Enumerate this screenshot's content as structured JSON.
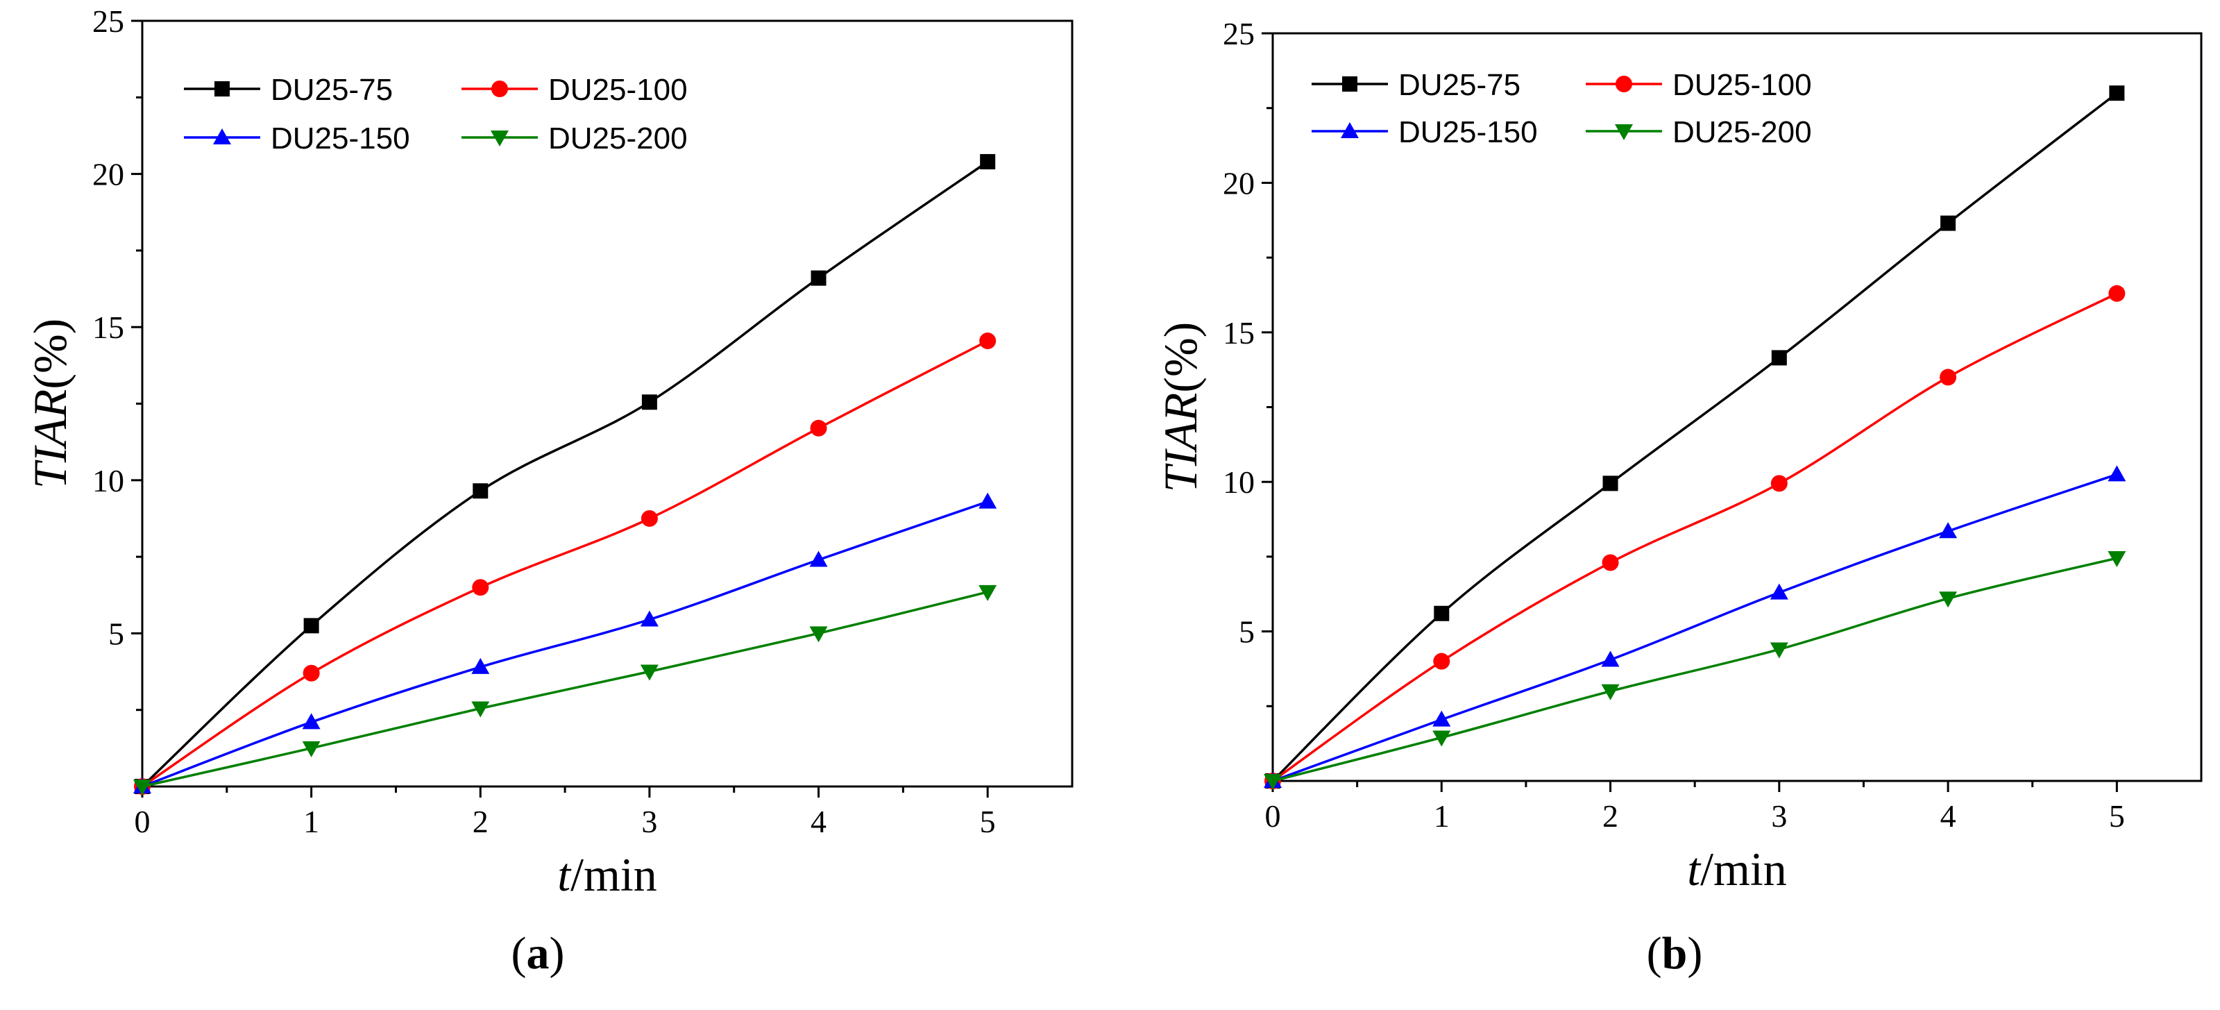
{
  "figure": {
    "panels": [
      {
        "label_open": "(",
        "label_letter": "a",
        "label_close": ")"
      },
      {
        "label_open": "(",
        "label_letter": "b",
        "label_close": ")"
      }
    ]
  },
  "chart_data": [
    {
      "type": "line",
      "panel": "a",
      "title": "",
      "xlabel_italic": "t",
      "xlabel_rest": "/min",
      "ylabel_italic": "TIAR",
      "ylabel_rest": "(%)",
      "xlim": [
        0,
        5.5
      ],
      "ylim": [
        0,
        25
      ],
      "xticks": [
        0,
        1,
        2,
        3,
        4,
        5
      ],
      "xtick_labels": [
        "0",
        "1",
        "2",
        "3",
        "4",
        "5"
      ],
      "yticks": [
        5,
        10,
        15,
        20,
        25
      ],
      "ytick_labels": [
        "5",
        "10",
        "15",
        "20",
        "25"
      ],
      "x": [
        0,
        1,
        2,
        3,
        4,
        5
      ],
      "series": [
        {
          "name": "DU25-75",
          "color": "#000000",
          "marker": "square",
          "values": [
            0,
            5.25,
            9.65,
            12.55,
            16.6,
            20.4
          ]
        },
        {
          "name": "DU25-100",
          "color": "#ff0000",
          "marker": "circle",
          "values": [
            0,
            3.7,
            6.5,
            8.75,
            11.7,
            14.55
          ]
        },
        {
          "name": "DU25-150",
          "color": "#0000ff",
          "marker": "triangle-up",
          "values": [
            0,
            2.1,
            3.9,
            5.45,
            7.4,
            9.3
          ]
        },
        {
          "name": "DU25-200",
          "color": "#008000",
          "marker": "triangle-down",
          "values": [
            0,
            1.25,
            2.55,
            3.75,
            5.0,
            6.35
          ]
        }
      ],
      "legend": "top-left, two columns"
    },
    {
      "type": "line",
      "panel": "b",
      "title": "",
      "xlabel_italic": "t",
      "xlabel_rest": "/min",
      "ylabel_italic": "TIAR",
      "ylabel_rest": "(%)",
      "xlim": [
        0,
        5.5
      ],
      "ylim": [
        0,
        25
      ],
      "xticks": [
        0,
        1,
        2,
        3,
        4,
        5
      ],
      "xtick_labels": [
        "0",
        "1",
        "2",
        "3",
        "4",
        "5"
      ],
      "yticks": [
        5,
        10,
        15,
        20,
        25
      ],
      "ytick_labels": [
        "5",
        "10",
        "15",
        "20",
        "25"
      ],
      "x": [
        0,
        1,
        2,
        3,
        4,
        5
      ],
      "series": [
        {
          "name": "DU25-75",
          "color": "#000000",
          "marker": "square",
          "values": [
            0,
            5.6,
            9.95,
            14.15,
            18.65,
            23.0
          ]
        },
        {
          "name": "DU25-100",
          "color": "#ff0000",
          "marker": "circle",
          "values": [
            0,
            4.0,
            7.3,
            9.95,
            13.5,
            16.3
          ]
        },
        {
          "name": "DU25-150",
          "color": "#0000ff",
          "marker": "triangle-up",
          "values": [
            0,
            2.05,
            4.05,
            6.3,
            8.35,
            10.25
          ]
        },
        {
          "name": "DU25-200",
          "color": "#008000",
          "marker": "triangle-down",
          "values": [
            0,
            1.45,
            3.0,
            4.4,
            6.1,
            7.45
          ]
        }
      ],
      "legend": "top-left, two columns"
    }
  ]
}
